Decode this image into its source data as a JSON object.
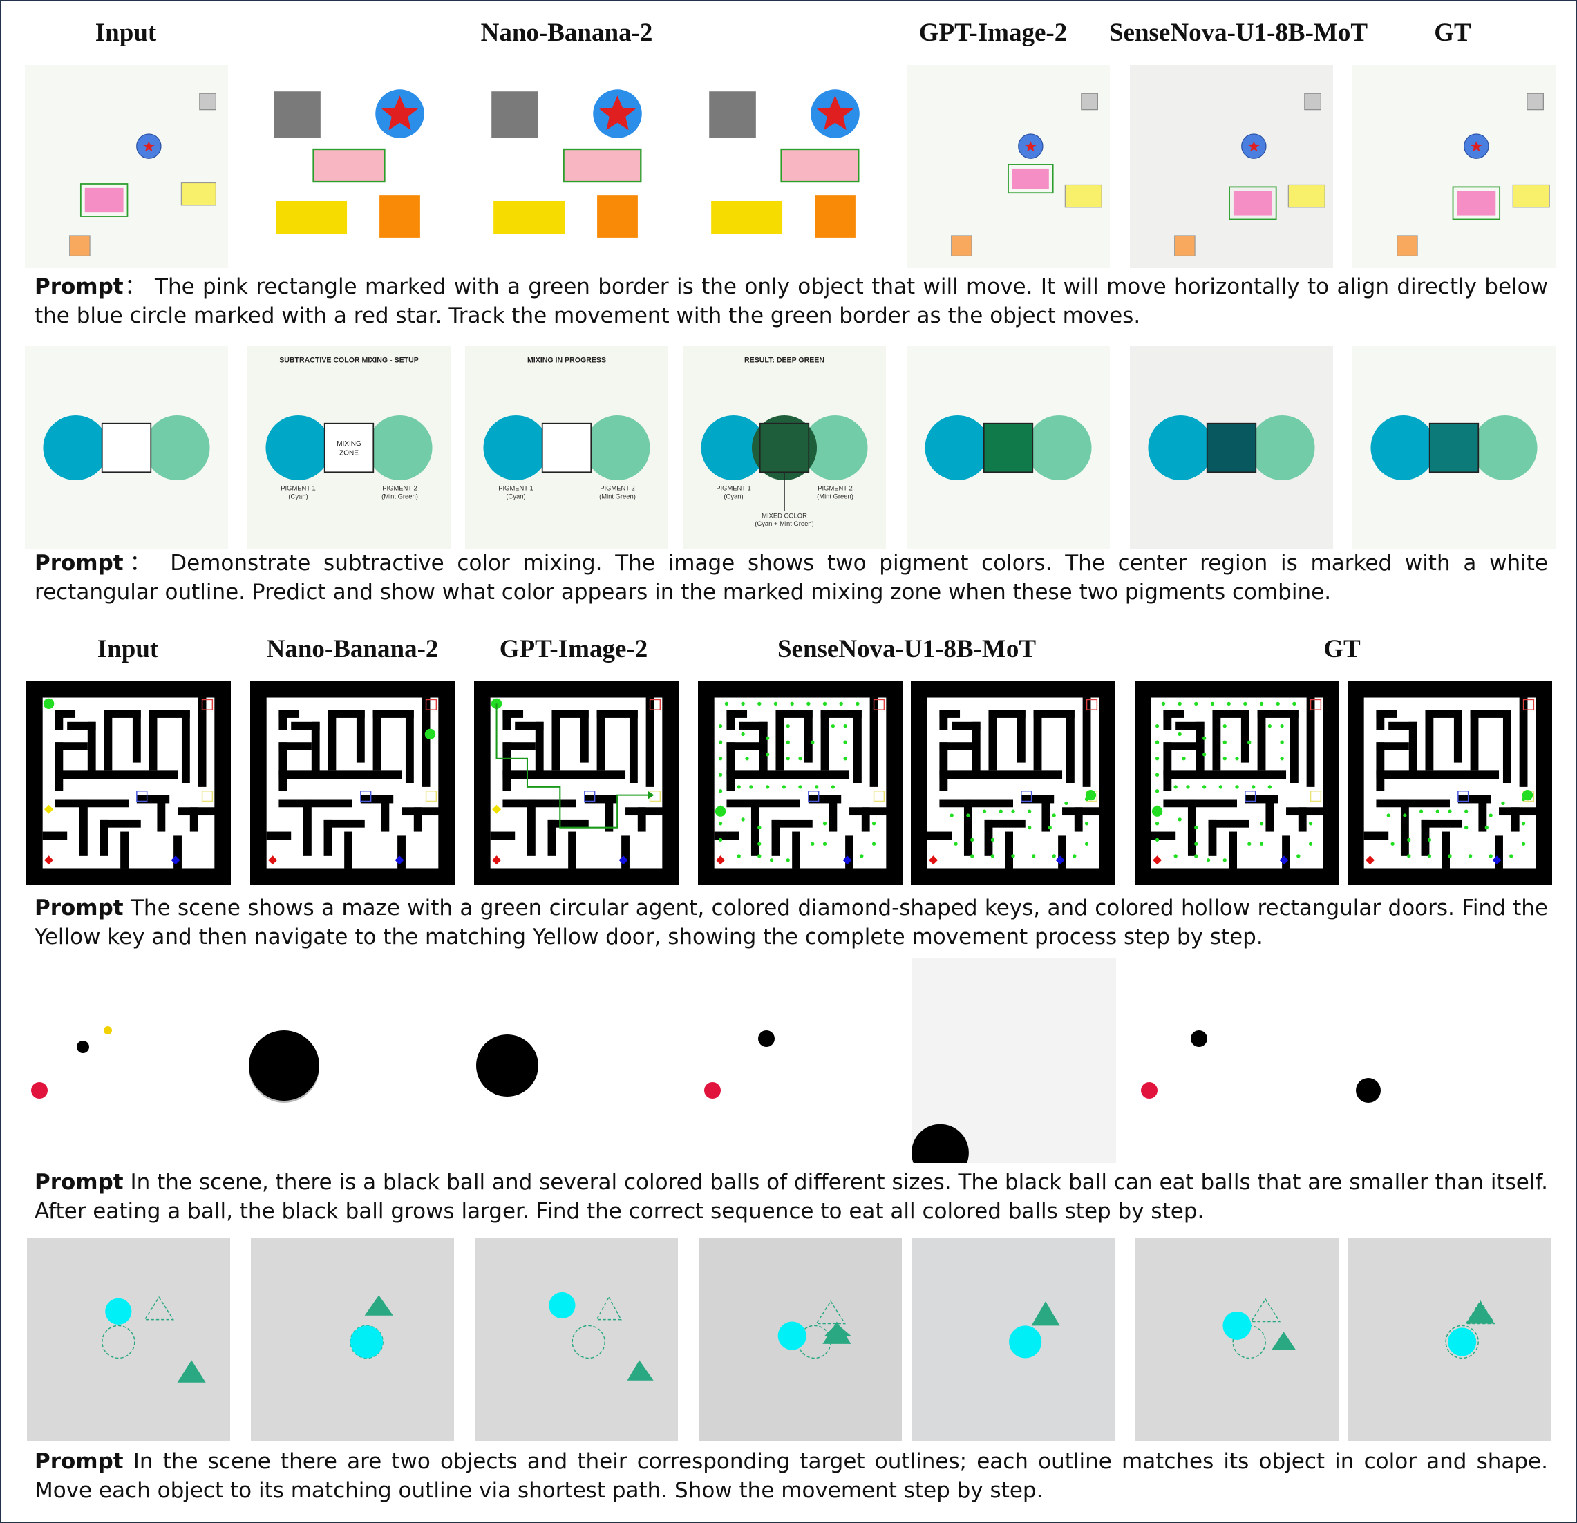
{
  "headers": {
    "row1": [
      "Input",
      "Nano-Banana-2",
      "GPT-Image-2",
      "SenseNova-U1-8B-MoT",
      "GT"
    ],
    "row2": [
      "Input",
      "Nano-Banana-2",
      "GPT-Image-2",
      "SenseNova-U1-8B-MoT",
      "GT"
    ]
  },
  "prompt_label": "Prompt",
  "prompts": {
    "move": "：  The pink rectangle marked with a green border is the only object that will move. It will move horizontally to align directly below the blue circle marked with a red star. Track the movement with the green border as the object moves.",
    "color": "：  Demonstrate subtractive color mixing. The image shows two pigment colors. The center region is marked with a white rectangular outline. Predict and show what color appears in the marked mixing zone when these two pigments combine.",
    "maze": " The scene shows a maze with a green circular agent, colored diamond-shaped keys, and colored hollow rectangular doors. Find the Yellow key and then navigate to the matching Yellow door, showing the complete movement process step by step.",
    "balls": " In the scene, there is a black ball and several colored balls of different sizes. The black ball can eat balls that are smaller than itself. After eating a ball, the black ball grows larger. Find the correct sequence to eat all colored balls step by step.",
    "shapes": " In the scene there are two objects and their corresponding target outlines; each outline matches its object in color and shape. Move each object to its matching outline via shortest path. Show the movement step by step."
  },
  "color_mix_labels": {
    "setup_title": "SUBTRACTIVE COLOR MIXING - SETUP",
    "progress_title": "MIXING IN PROGRESS",
    "result_title": "RESULT: DEEP GREEN",
    "zone_line1": "MIXING",
    "zone_line2": "ZONE",
    "pigment1": "PIGMENT 1",
    "pigment1_sub": "(Cyan)",
    "pigment2": "PIGMENT 2",
    "pigment2_sub": "(Mint Green)",
    "mixed": "MIXED COLOR",
    "mixed_sub": "(Cyan + Mint Green)"
  },
  "colors": {
    "cyan_pigment": "#00a7c6",
    "mint_pigment": "#72cca8",
    "pink": "#f48ec5",
    "maze_agent": "#22dd22",
    "shape_bg": "#d9d9d9",
    "teal_triangle": "#2aa882"
  }
}
